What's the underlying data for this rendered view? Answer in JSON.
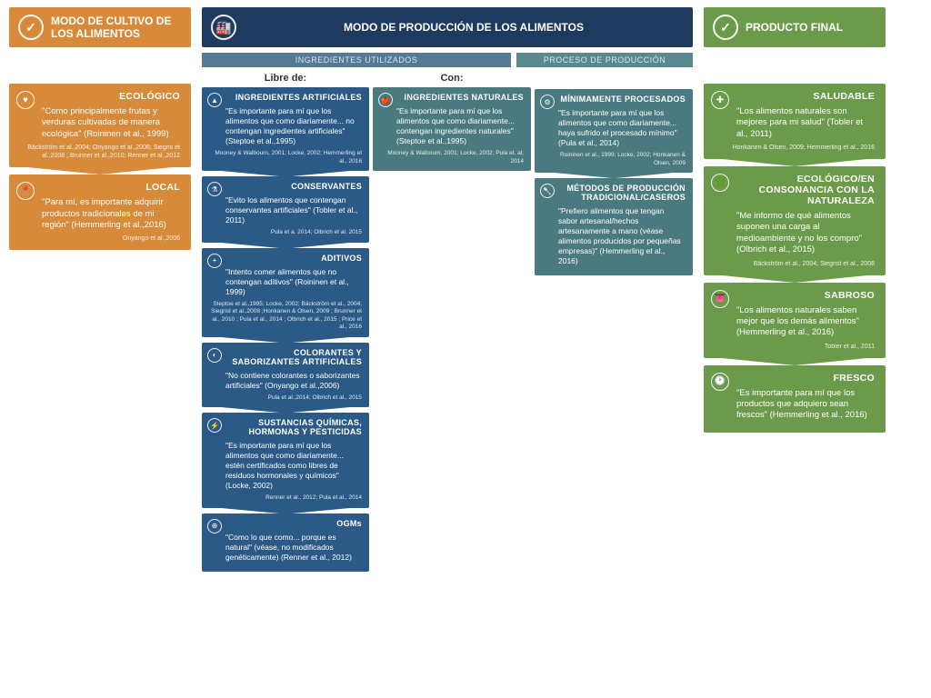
{
  "colors": {
    "orange": "#d68a3a",
    "navy": "#1e3a5f",
    "blue": "#2b5a87",
    "teal": "#4a7a7f",
    "green": "#6b9b4a",
    "subblue": "#577a94",
    "subteal": "#5a8a8f"
  },
  "headers": {
    "cultivo": "MODO DE CULTIVO DE LOS ALIMENTOS",
    "produccion": "MODO DE PRODUCCIÓN DE LOS ALIMENTOS",
    "final": "PRODUCTO FINAL",
    "ingredientes": "INGREDIENTES UTILIZADOS",
    "proceso": "PROCESO DE PRODUCCIÓN",
    "libre": "Libre de:",
    "con": "Con:"
  },
  "cultivo": [
    {
      "icon": "♥",
      "title": "ECOLÓGICO",
      "quote": "\"Como principalmente frutas y verduras cultivadas de manera ecológica\" (Roininen et al., 1999)",
      "ref": "Bäckström et al.,2004; Onyango et al.,2006; Siegris et al.,2008 ; Brunner et al.,2010; Renner et al.,2012"
    },
    {
      "icon": "📍",
      "title": "LOCAL",
      "quote": "\"Para mí, es importante adquirir productos tradicionales de mi región\" (Hemmerling et al.,2016)",
      "ref": "Onyango et al.,2006"
    }
  ],
  "libre": [
    {
      "icon": "▲",
      "title": "INGREDIENTES ARTIFICIALES",
      "quote": "\"Es importante para mí que los alimentos que como diariamente... no contengan ingredientes artificiales\" (Steptoe et al.,1995)",
      "ref": "Mooney & Walbourn, 2001; Locke, 2002; Hemmerling et al., 2016"
    },
    {
      "icon": "⚗",
      "title": "CONSERVANTES",
      "quote": "\"Evito los alimentos que contengan conservantes artificiales\" (Tobler et al., 2011)",
      "ref": "Pula et a. 2014; Olbrich et al. 2015"
    },
    {
      "icon": "+",
      "title": "ADITIVOS",
      "quote": "\"Intento comer alimentos que no contengan aditivos\" (Roininen et al., 1999)",
      "ref": "Steptoe et al.,1995; Locke, 2002; Bäckström et al., 2004; Siegrist et al.,2008 ;Honkanen & Olsen, 2009 ; Brunner et al., 2010 ; Pula et al., 2014 ; Olbrich et al., 2015 ; Price et al., 2016"
    },
    {
      "icon": "◐",
      "title": "COLORANTES Y SABORIZANTES ARTIFICIALES",
      "quote": "\"No contiene colorantes o saborizantes artificiales\" (Onyango et al.,2006)",
      "ref": "Pula et al.,2014; Olbrich et al., 2015"
    },
    {
      "icon": "⚡",
      "title": "SUSTANCIAS QUÍMICAS, HORMONAS Y PESTICIDAS",
      "quote": "\"Es importante para mí que los alimentos que como diariamente... estén certificados como libres de residuos hormonales y químicos\" (Locke, 2002)",
      "ref": "Renner et al., 2012; Pula et al., 2014"
    },
    {
      "icon": "⊕",
      "title": "OGMs",
      "quote": "\"Como lo que como... porque es natural\" (véase, no modificados genéticamente) (Renner et al., 2012)",
      "ref": ""
    }
  ],
  "con": [
    {
      "icon": "🍎",
      "title": "INGREDIENTES NATURALES",
      "quote": "\"Es importante para mí que los alimentos que como diariamente... contengan ingredientes naturales\" (Steptoe et al.,1995)",
      "ref": "Mooney & Walboum, 2001; Locke, 2002; Pula et. al; 2014"
    }
  ],
  "proceso": [
    {
      "icon": "⚙",
      "title": "MÍNIMAMENTE PROCESADOS",
      "quote": "\"Es importante para mí que los alimentos que como diariamente... haya sufrido el procesado mínimo\" (Pula et al., 2014)",
      "ref": "Roininen et al., 1999; Locke, 2002; Honkanen & Olsen, 2009"
    },
    {
      "icon": "🥄",
      "title": "MÉTODOS DE PRODUCCIÓN TRADICIONAL/CASEROS",
      "quote": "\"Prefiero alimentos que tengan sabor artesanal/hechos artesanamente a mano (véase alimentos producidos por pequeñas empresas)\" (Hemmerling et al., 2016)",
      "ref": ""
    }
  ],
  "final": [
    {
      "icon": "✚",
      "title": "SALUDABLE",
      "quote": "\"Los alimentos naturales son mejores para mi salud\" (Tobler et al., 2011)",
      "ref": "Honkanen & Olsen, 2009; Hemmerling et al., 2016"
    },
    {
      "icon": "🌿",
      "title": "ECOLÓGICO/EN CONSONANCIA CON LA NATURALEZA",
      "quote": "\"Me informo de qué alimentos suponen una carga al medioambiente y no los compro\" (Olbrich et al., 2015)",
      "ref": "Bäckström et al., 2004; Siegrist et al., 2008"
    },
    {
      "icon": "👅",
      "title": "SABROSO",
      "quote": "\"Los alimentos naturales saben mejor que los demás alimentos\" (Hemmerling et al., 2016)",
      "ref": "Tobler et al., 2011"
    },
    {
      "icon": "🕐",
      "title": "FRESCO",
      "quote": "\"Es importante para mí que los productos que adquiero sean frescos\" (Hemmerling et al., 2016)",
      "ref": ""
    }
  ]
}
